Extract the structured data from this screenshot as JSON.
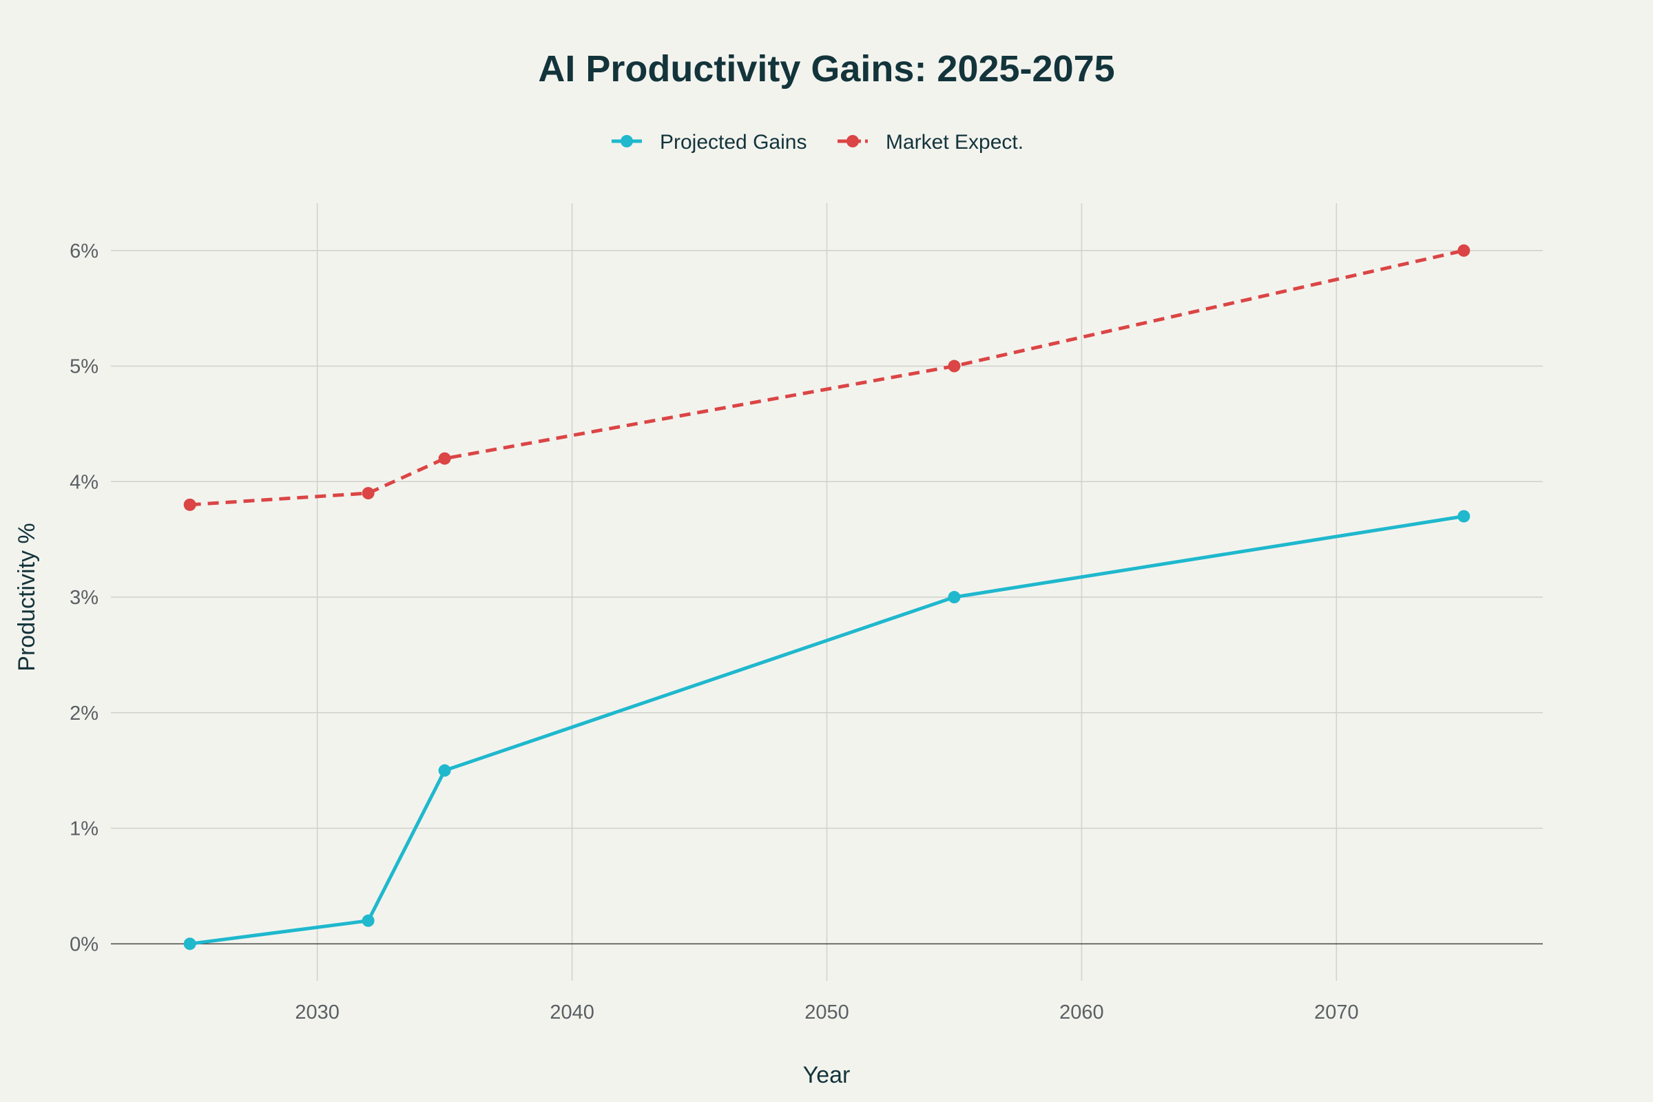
{
  "chart_data": {
    "type": "line",
    "title": "AI Productivity Gains: 2025-2075",
    "xlabel": "Year",
    "ylabel": "Productivity %",
    "xlim": [
      2021.9,
      2078.1
    ],
    "ylim": [
      -0.32,
      6.41
    ],
    "xticks": [
      2030,
      2040,
      2050,
      2060,
      2070
    ],
    "xtick_labels": [
      "2030",
      "2040",
      "2050",
      "2060",
      "2070"
    ],
    "yticks": [
      0,
      1,
      2,
      3,
      4,
      5,
      6
    ],
    "ytick_labels": [
      "0%",
      "1%",
      "2%",
      "3%",
      "4%",
      "5%",
      "6%"
    ],
    "grid": true,
    "legend_position": "top-center",
    "series": [
      {
        "name": "Projected Gains",
        "color": "#1fb8cd",
        "dash": "solid",
        "x": [
          2025,
          2032,
          2035,
          2055,
          2075
        ],
        "y": [
          0,
          0.2,
          1.5,
          3.0,
          3.7
        ]
      },
      {
        "name": "Market Expect.",
        "color": "#db4545",
        "dash": "dashed",
        "x": [
          2025,
          2032,
          2035,
          2055,
          2075
        ],
        "y": [
          3.8,
          3.9,
          4.2,
          5.0,
          6.0
        ]
      }
    ]
  }
}
